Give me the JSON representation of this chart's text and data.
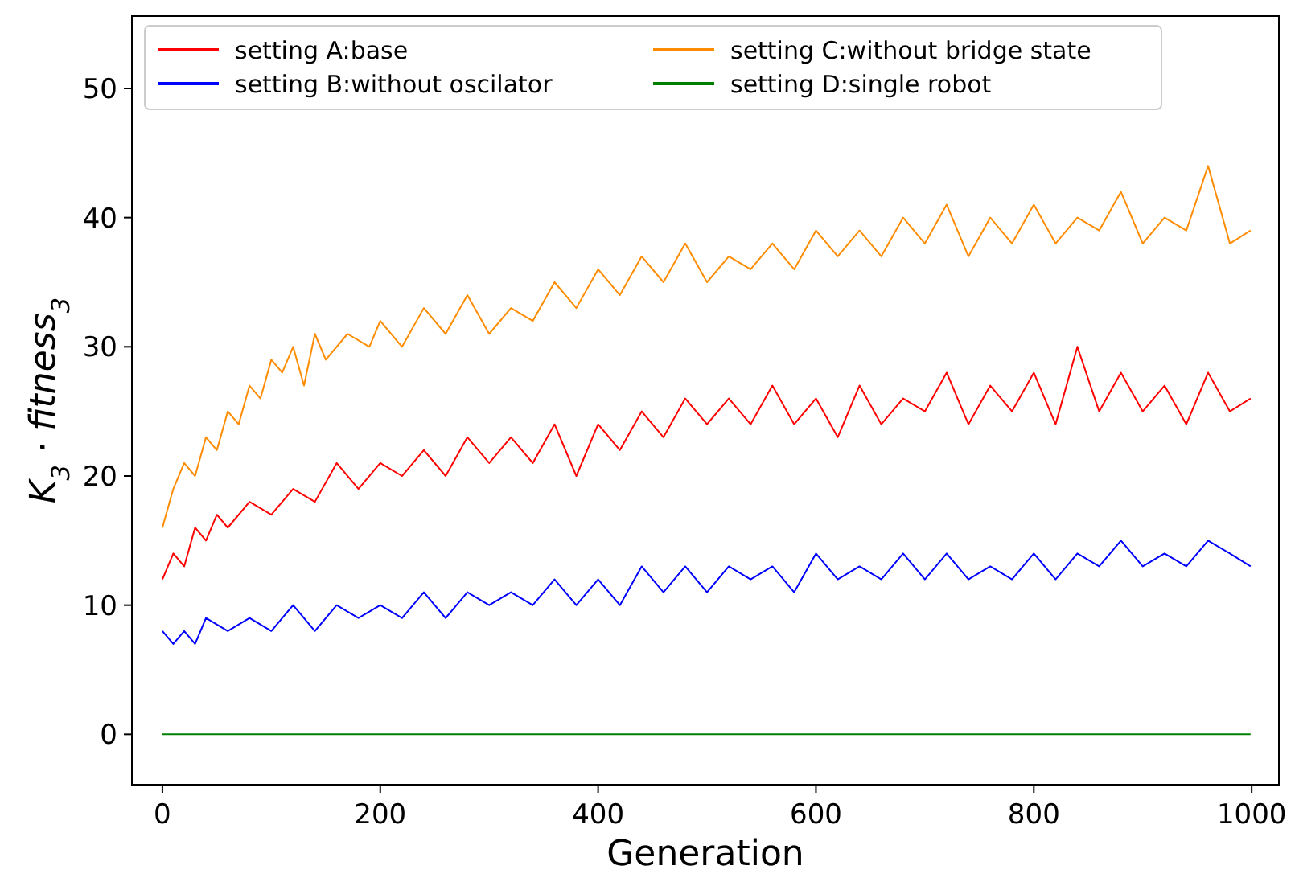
{
  "chart_data": {
    "type": "line",
    "xlabel": "Generation",
    "ylabel": "K$_{3}$ · fitness$_{3}$",
    "xlim": [
      -28,
      1025
    ],
    "ylim": [
      -3.9,
      55.6
    ],
    "xticks": [
      0,
      200,
      400,
      600,
      800,
      1000
    ],
    "yticks": [
      0,
      10,
      20,
      30,
      40,
      50
    ],
    "grid": false,
    "legend": "top",
    "series": [
      {
        "name": "setting A:base",
        "color": "#ff0000",
        "x": [
          0,
          10,
          20,
          30,
          40,
          50,
          60,
          80,
          100,
          120,
          140,
          160,
          180,
          200,
          220,
          240,
          260,
          280,
          300,
          320,
          340,
          360,
          380,
          400,
          420,
          440,
          460,
          480,
          500,
          520,
          540,
          560,
          580,
          600,
          620,
          640,
          660,
          680,
          700,
          720,
          740,
          760,
          780,
          800,
          820,
          840,
          860,
          880,
          900,
          920,
          940,
          960,
          980,
          999
        ],
        "values": [
          12,
          14,
          13,
          16,
          15,
          17,
          16,
          18,
          17,
          19,
          18,
          21,
          19,
          21,
          20,
          22,
          20,
          23,
          21,
          23,
          21,
          24,
          20,
          24,
          22,
          25,
          23,
          26,
          24,
          26,
          24,
          27,
          24,
          26,
          23,
          27,
          24,
          26,
          25,
          28,
          24,
          27,
          25,
          28,
          24,
          30,
          25,
          28,
          25,
          27,
          24,
          28,
          25,
          26
        ]
      },
      {
        "name": "setting B:without oscilator",
        "color": "#0000ff",
        "x": [
          0,
          10,
          20,
          30,
          40,
          60,
          80,
          100,
          120,
          140,
          160,
          180,
          200,
          220,
          240,
          260,
          280,
          300,
          320,
          340,
          360,
          380,
          400,
          420,
          440,
          460,
          480,
          500,
          520,
          540,
          560,
          580,
          600,
          620,
          640,
          660,
          680,
          700,
          720,
          740,
          760,
          780,
          800,
          820,
          840,
          860,
          880,
          900,
          920,
          940,
          960,
          980,
          999
        ],
        "values": [
          8,
          7,
          8,
          7,
          9,
          8,
          9,
          8,
          10,
          8,
          10,
          9,
          10,
          9,
          11,
          9,
          11,
          10,
          11,
          10,
          12,
          10,
          12,
          10,
          13,
          11,
          13,
          11,
          13,
          12,
          13,
          11,
          14,
          12,
          13,
          12,
          14,
          12,
          14,
          12,
          13,
          12,
          14,
          12,
          14,
          13,
          15,
          13,
          14,
          13,
          15,
          14,
          13
        ]
      },
      {
        "name": "setting C:without bridge state",
        "color": "#ff8c00",
        "x": [
          0,
          10,
          20,
          30,
          40,
          50,
          60,
          70,
          80,
          90,
          100,
          110,
          120,
          130,
          140,
          150,
          170,
          190,
          200,
          220,
          240,
          260,
          280,
          300,
          320,
          340,
          360,
          380,
          400,
          420,
          440,
          460,
          480,
          500,
          520,
          540,
          560,
          580,
          600,
          620,
          640,
          660,
          680,
          700,
          720,
          740,
          760,
          780,
          800,
          820,
          840,
          860,
          880,
          900,
          920,
          940,
          960,
          980,
          999
        ],
        "values": [
          16,
          19,
          21,
          20,
          23,
          22,
          25,
          24,
          27,
          26,
          29,
          28,
          30,
          27,
          31,
          29,
          31,
          30,
          32,
          30,
          33,
          31,
          34,
          31,
          33,
          32,
          35,
          33,
          36,
          34,
          37,
          35,
          38,
          35,
          37,
          36,
          38,
          36,
          39,
          37,
          39,
          37,
          40,
          38,
          41,
          37,
          40,
          38,
          41,
          38,
          40,
          39,
          42,
          38,
          40,
          39,
          44,
          38,
          39
        ]
      },
      {
        "name": "setting D:single robot",
        "color": "#008000",
        "x": [
          0,
          999
        ],
        "values": [
          0,
          0
        ]
      }
    ]
  }
}
